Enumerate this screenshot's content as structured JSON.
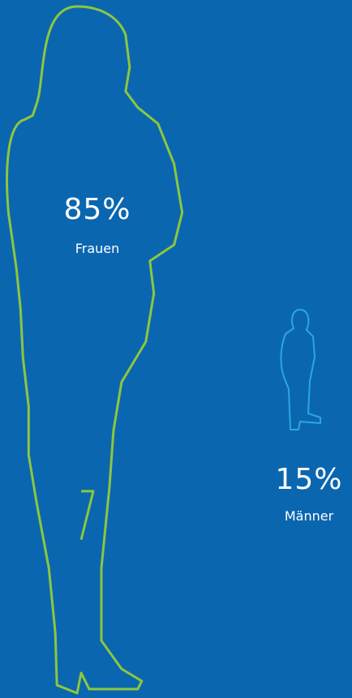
{
  "chart_data": {
    "type": "pictogram",
    "categories": [
      "Frauen",
      "Männer"
    ],
    "values": [
      85,
      15
    ],
    "value_labels": [
      "85%",
      "15%"
    ],
    "colors": [
      "#8cc63f",
      "#29a8e0"
    ]
  }
}
